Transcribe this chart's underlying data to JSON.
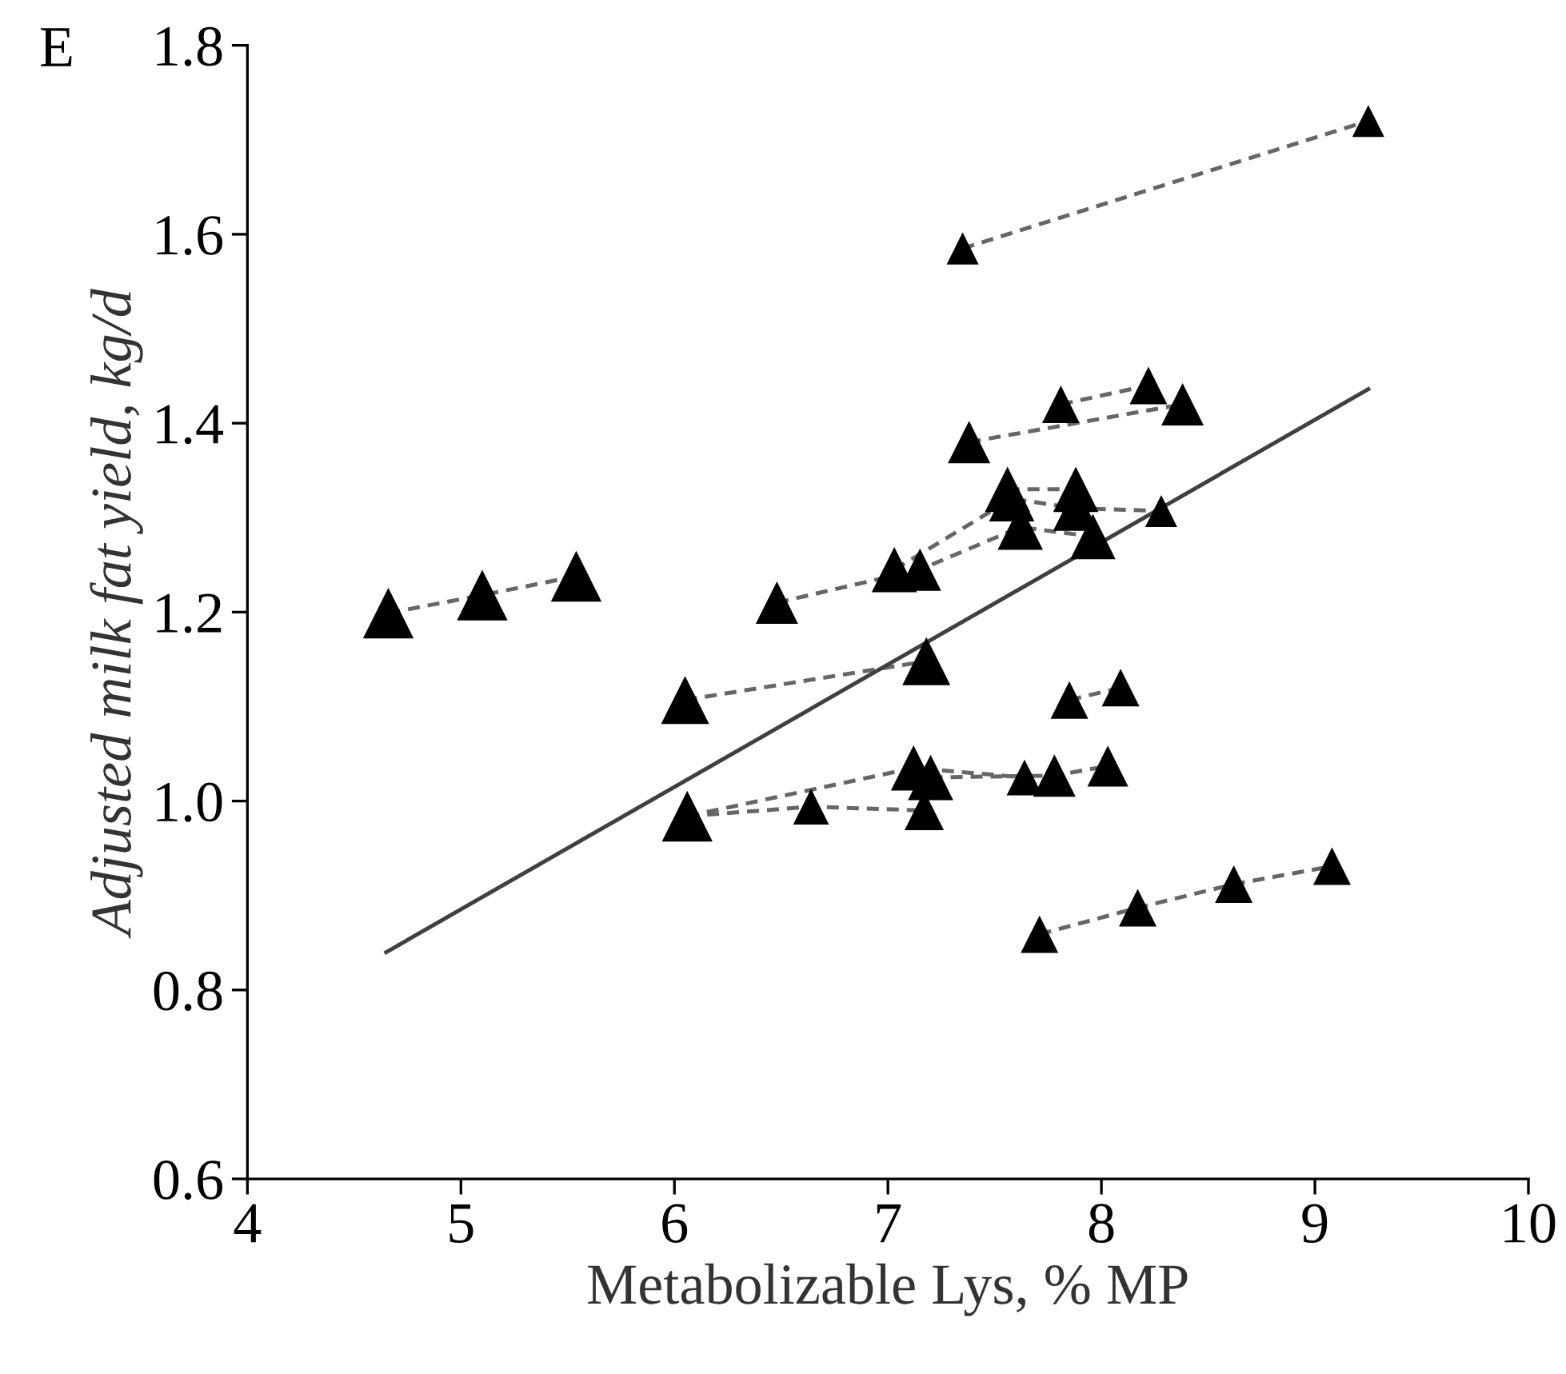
{
  "chart_data": {
    "type": "line",
    "xlabel": "Metabolizable Lys, % MP",
    "ylabel": "Adjusted milk fat yield, kg/d",
    "annotations": [
      "E"
    ],
    "xlim": [
      4,
      10
    ],
    "xticks": [
      4,
      5,
      6,
      7,
      8,
      9,
      10
    ],
    "ylim": [
      0.6,
      1.8
    ],
    "yticks": [
      0.6,
      0.8,
      {
        "value": 1.0,
        "label": "1.0"
      },
      1.2,
      1.4,
      1.6,
      1.8
    ],
    "grid": false,
    "marker": "none",
    "line_style": "dashed",
    "series": [
      {
        "color": "#666666",
        "x": [
          7.35,
          9.25
        ],
        "values": [
          1.585,
          1.72
        ]
      },
      {
        "color": "#666666",
        "x": [
          7.81,
          8.22
        ],
        "values": [
          1.42,
          1.44
        ]
      },
      {
        "color": "#666666",
        "x": [
          7.38,
          8.38
        ],
        "values": [
          1.38,
          1.42
        ]
      },
      {
        "color": "#666666",
        "x": [
          6.48,
          7.15,
          7.62,
          7.96
        ],
        "values": [
          1.21,
          1.245,
          1.29,
          1.28
        ]
      },
      {
        "color": "#666666",
        "x": [
          7.03,
          7.58,
          7.88,
          8.28
        ],
        "values": [
          1.245,
          1.32,
          1.31,
          1.307
        ]
      },
      {
        "color": "#666666",
        "x": [
          7.56,
          7.88
        ],
        "values": [
          1.33,
          1.33
        ]
      },
      {
        "color": "#666666",
        "x": [
          4.66,
          5.1,
          5.54
        ],
        "values": [
          1.199,
          1.218,
          1.238
        ]
      },
      {
        "color": "#666666",
        "x": [
          6.05,
          7.18
        ],
        "values": [
          1.107,
          1.148
        ]
      },
      {
        "color": "#666666",
        "x": [
          7.85,
          8.09
        ],
        "values": [
          1.107,
          1.12
        ]
      },
      {
        "color": "#666666",
        "x": [
          6.06,
          6.64,
          7.17
        ],
        "values": [
          0.984,
          0.994,
          0.99
        ]
      },
      {
        "color": "#666666",
        "x": [
          6.06,
          7.12,
          7.64
        ],
        "values": [
          0.984,
          1.035,
          1.025
        ]
      },
      {
        "color": "#666666",
        "x": [
          7.2,
          7.78,
          8.03
        ],
        "values": [
          1.025,
          1.027,
          1.037
        ]
      },
      {
        "color": "#666666",
        "x": [
          7.71,
          8.17,
          8.62,
          9.08
        ],
        "values": [
          0.859,
          0.887,
          0.912,
          0.931
        ]
      },
      {
        "color": "#404040",
        "x": [
          4.65,
          9.25
        ],
        "values": [
          0.84,
          1.436
        ],
        "line_style": "solid"
      },
      {
        "type": "bubble",
        "color": "#000000",
        "marker": "triangle",
        "x": [
          7.35,
          9.25,
          7.81,
          8.22,
          7.38,
          8.38,
          6.48,
          7.15,
          7.62,
          7.96,
          7.03,
          7.58,
          7.88,
          8.28,
          7.56,
          7.88,
          4.66,
          5.1,
          5.54,
          6.05,
          7.18,
          7.85,
          8.09,
          6.06,
          6.64,
          7.17,
          7.12,
          7.64,
          7.2,
          7.78,
          8.03,
          7.71,
          8.17,
          8.62,
          9.08
        ],
        "values": [
          1.585,
          1.72,
          1.42,
          1.44,
          1.38,
          1.42,
          1.21,
          1.245,
          1.29,
          1.28,
          1.245,
          1.32,
          1.31,
          1.307,
          1.33,
          1.33,
          1.199,
          1.218,
          1.238,
          1.107,
          1.148,
          1.107,
          1.12,
          0.984,
          0.994,
          0.99,
          1.035,
          1.025,
          1.025,
          1.027,
          1.037,
          0.859,
          0.887,
          0.912,
          0.931
        ],
        "sizes": [
          0.4,
          0.4,
          0.55,
          0.55,
          0.7,
          0.7,
          0.7,
          0.7,
          0.8,
          0.8,
          0.8,
          0.8,
          0.8,
          0.4,
          0.8,
          0.8,
          1,
          1,
          1,
          0.9,
          0.9,
          0.55,
          0.55,
          1,
          0.5,
          0.6,
          0.8,
          0.5,
          0.8,
          0.7,
          0.65,
          0.55,
          0.55,
          0.55,
          0.55
        ]
      }
    ]
  }
}
